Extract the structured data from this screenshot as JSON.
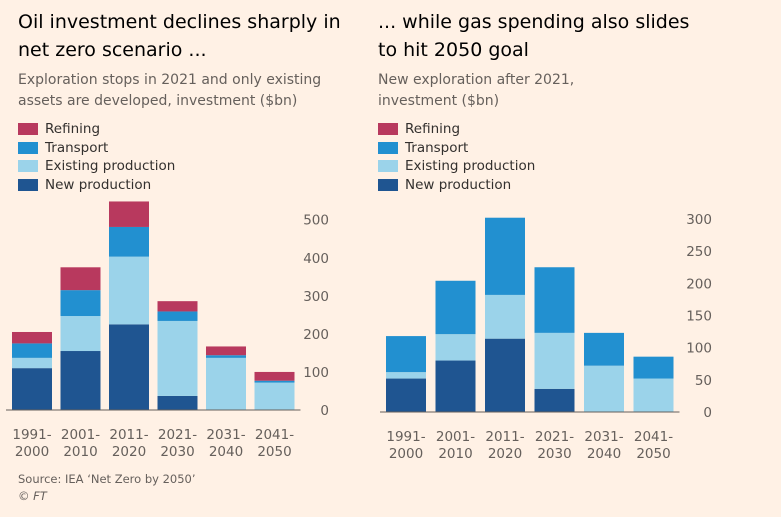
{
  "colors": {
    "background": "#fff1e5",
    "refining": "#b8395e",
    "transport": "#2290d0",
    "existing": "#9bd3ea",
    "new": "#1f5591",
    "gridline": "#ddd3c9",
    "axis": "#66605c"
  },
  "left": {
    "title_line1": "Oil investment declines sharply in",
    "title_line2": "net zero scenario ...",
    "subtitle_line1": "Exploration stops in 2021 and only existing",
    "subtitle_line2": "assets are developed, investment ($bn)",
    "legend": [
      "Refining",
      "Transport",
      "Existing production",
      "New production"
    ]
  },
  "right": {
    "title_line1": "... while gas spending also slides",
    "title_line2": "to hit 2050 goal",
    "subtitle_line1": "New exploration after 2021,",
    "subtitle_line2": "investment ($bn)",
    "legend": [
      "Refining",
      "Transport",
      "Existing production",
      "New production"
    ]
  },
  "chart_data": [
    {
      "type": "bar",
      "stacked": true,
      "title": "Oil investment declines sharply in net zero scenario ...",
      "subtitle": "Exploration stops in 2021 and only existing assets are developed, investment ($bn)",
      "categories": [
        [
          "1991-",
          "2000"
        ],
        [
          "2001-",
          "2010"
        ],
        [
          "2011-",
          "2020"
        ],
        [
          "2021-",
          "2030"
        ],
        [
          "2031-",
          "2040"
        ],
        [
          "2041-",
          "2050"
        ]
      ],
      "series": [
        {
          "name": "New production",
          "key": "new",
          "values": [
            110,
            155,
            225,
            37,
            0,
            0
          ]
        },
        {
          "name": "Existing production",
          "key": "existing",
          "values": [
            27,
            92,
            178,
            197,
            137,
            72
          ]
        },
        {
          "name": "Transport",
          "key": "transport",
          "values": [
            38,
            68,
            78,
            25,
            7,
            5
          ]
        },
        {
          "name": "Refining",
          "key": "refining",
          "values": [
            30,
            60,
            67,
            27,
            23,
            23
          ]
        }
      ],
      "ylim": [
        0,
        550
      ],
      "yticks": [
        0,
        100,
        200,
        300,
        400,
        500
      ],
      "ytick_labels": [
        "0",
        "100",
        "200",
        "300",
        "400",
        "500"
      ],
      "y_axis_position": "right",
      "grid": false
    },
    {
      "type": "bar",
      "stacked": true,
      "title": "... while gas spending also slides to hit 2050 goal",
      "subtitle": "New exploration after 2021, investment ($bn)",
      "categories": [
        [
          "1991-",
          "2000"
        ],
        [
          "2001-",
          "2010"
        ],
        [
          "2011-",
          "2020"
        ],
        [
          "2021-",
          "2030"
        ],
        [
          "2031-",
          "2040"
        ],
        [
          "2041-",
          "2050"
        ]
      ],
      "series": [
        {
          "name": "New production",
          "key": "new",
          "values": [
            52,
            80,
            114,
            36,
            0,
            0
          ]
        },
        {
          "name": "Existing production",
          "key": "existing",
          "values": [
            10,
            41,
            68,
            87,
            72,
            52
          ]
        },
        {
          "name": "Transport",
          "key": "transport",
          "values": [
            56,
            83,
            120,
            102,
            51,
            34
          ]
        },
        {
          "name": "Refining",
          "key": "refining",
          "values": [
            0,
            0,
            0,
            0,
            0,
            0
          ]
        }
      ],
      "ylim": [
        0,
        300
      ],
      "yticks": [
        0,
        50,
        100,
        150,
        200,
        250,
        300
      ],
      "ytick_labels": [
        "0",
        "50",
        "100",
        "150",
        "200",
        "250",
        "300"
      ],
      "y_axis_position": "right",
      "grid": false
    }
  ],
  "footer": {
    "source": "Source: IEA ‘Net Zero by 2050’",
    "copyright": "© FT"
  }
}
